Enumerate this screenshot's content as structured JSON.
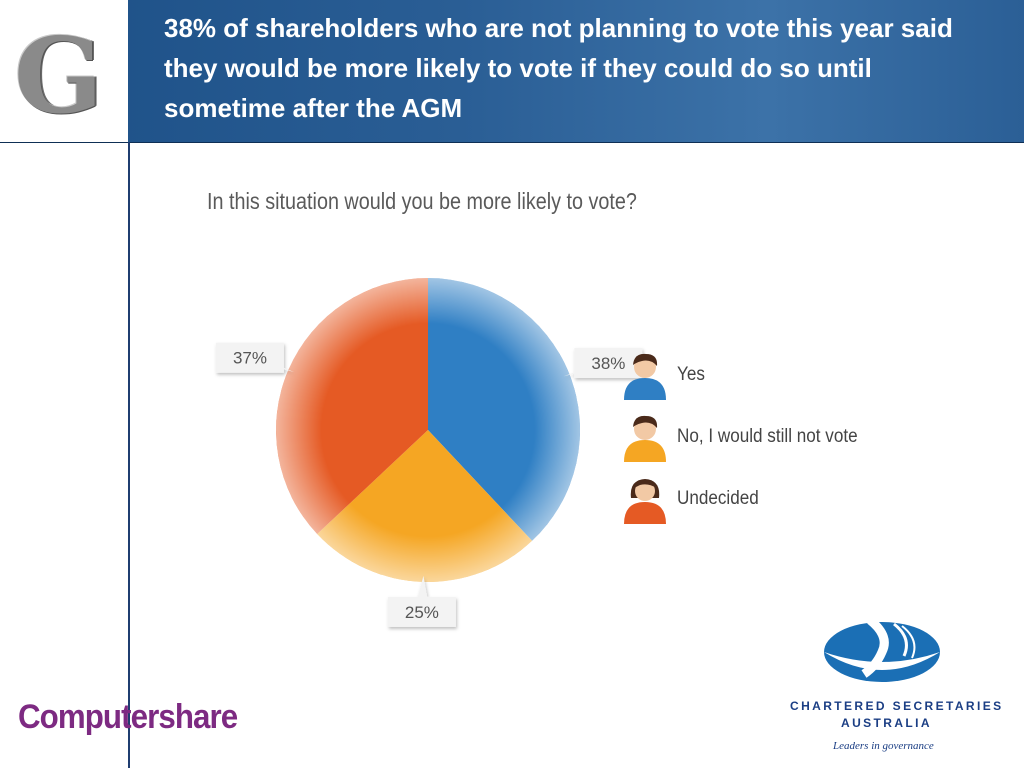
{
  "header": {
    "title": "38% of shareholders who are not planning to vote this year said they would be more likely to vote if they could do so until sometime after the AGM"
  },
  "chart_data": {
    "type": "pie",
    "title": "In this situation would you be more likely to vote?",
    "slices": [
      {
        "label": "Yes",
        "value": 38,
        "display": "38%",
        "color": "#2f7fc4"
      },
      {
        "label": "No, I would still not vote",
        "value": 25,
        "display": "25%",
        "color": "#f5a623"
      },
      {
        "label": "Undecided",
        "value": 37,
        "display": "37%",
        "color": "#e55a24"
      }
    ],
    "legend_position": "right"
  },
  "legend_icons": [
    "person-icon-blue",
    "person-icon-yellow",
    "person-icon-orange"
  ],
  "footer": {
    "left_logo_text": "Computershare",
    "csa_name_line1": "CHARTERED SECRETARIES",
    "csa_name_line2": "AUSTRALIA",
    "csa_tagline": "Leaders in governance"
  },
  "colors": {
    "header_blue": "#24578e",
    "computershare_purple": "#7d2a82",
    "csa_blue": "#1b3e84"
  }
}
